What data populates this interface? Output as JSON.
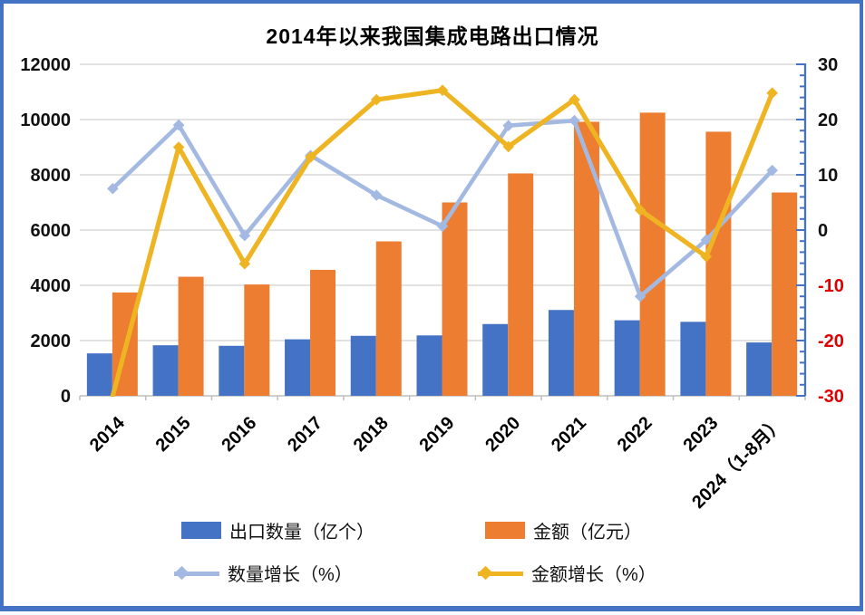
{
  "chart_data": {
    "type": "combo-bar-line",
    "title": "2014年以来我国集成电路出口情况",
    "categories": [
      "2014",
      "2015",
      "2016",
      "2017",
      "2018",
      "2019",
      "2020",
      "2021",
      "2022",
      "2023",
      "2024（1-8月）"
    ],
    "series": [
      {
        "name": "出口数量（亿个）",
        "type": "bar",
        "axis": "left",
        "color": "#4472C4",
        "values": [
          1536,
          1830,
          1810,
          2045,
          2171,
          2187,
          2598,
          3107,
          2734,
          2678,
          1931
        ]
      },
      {
        "name": "金额（亿元）",
        "type": "bar",
        "axis": "left",
        "color": "#ED7D31",
        "values": [
          3740,
          4310,
          4030,
          4560,
          5590,
          7000,
          8050,
          9920,
          10250,
          9560,
          7360
        ]
      },
      {
        "name": "数量增长（%）",
        "type": "line",
        "axis": "right",
        "color": "#A4B9E2",
        "values": [
          7.5,
          19.0,
          -1.0,
          13.5,
          6.3,
          0.7,
          18.9,
          19.8,
          -12.0,
          -1.8,
          10.8
        ]
      },
      {
        "name": "金额增长（%）",
        "type": "line",
        "axis": "right",
        "color": "#EEB422",
        "values": [
          -30,
          15.0,
          -6.1,
          13.2,
          23.6,
          25.3,
          15.1,
          23.6,
          3.6,
          -4.8,
          24.8
        ]
      }
    ],
    "left_axis": {
      "min": 0,
      "max": 12000,
      "step": 2000,
      "tick_labels": [
        "12000",
        "10000",
        "8000",
        "6000",
        "4000",
        "2000",
        "0"
      ]
    },
    "right_axis": {
      "min": -30,
      "max": 30,
      "step": 10,
      "tick_labels": [
        "30",
        "20",
        "10",
        "0",
        "-10",
        "-20",
        "-30"
      ],
      "negative_label_color": "#E00000",
      "axis_color": "#4472C4"
    },
    "grid": true,
    "gridline_color": "#DEDEDE",
    "legend_position": "bottom"
  },
  "frame_color": "#4472C4"
}
